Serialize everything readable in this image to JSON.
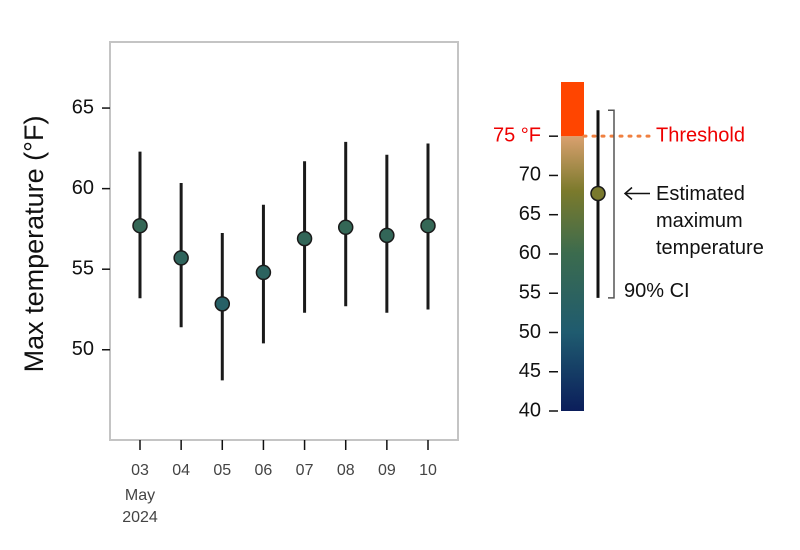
{
  "chart_data": [
    {
      "type": "errorbar",
      "ylabel": "Max temperature (°F)",
      "categories": [
        "03",
        "04",
        "05",
        "06",
        "07",
        "08",
        "09",
        "10"
      ],
      "x_sublabels": [
        "May",
        "2024"
      ],
      "values": [
        57.7,
        55.7,
        52.85,
        54.8,
        56.9,
        57.6,
        57.1,
        57.7
      ],
      "lower": [
        53.2,
        51.4,
        48.1,
        50.4,
        52.3,
        52.7,
        52.3,
        52.5
      ],
      "upper": [
        62.3,
        60.35,
        57.25,
        59.0,
        61.7,
        62.9,
        62.1,
        62.8
      ],
      "ylim": [
        44.4,
        69.1
      ],
      "yticks": [
        50,
        55,
        60,
        65
      ]
    },
    {
      "type": "colorbar",
      "ylim": [
        40,
        81.9
      ],
      "yticks": [
        40,
        45,
        50,
        55,
        60,
        65,
        70,
        {
          "value": 75,
          "label": "75 °F"
        }
      ],
      "colorscale": [
        [
          40,
          "#0b1e5b"
        ],
        [
          50,
          "#1f5b6f"
        ],
        [
          60,
          "#3b6b4e"
        ],
        [
          68,
          "#7b7a2c"
        ],
        [
          75,
          "#d9a06f"
        ]
      ],
      "above_color": "#ff4500",
      "threshold": 75,
      "threshold_label": "Threshold",
      "example_value": 67.7,
      "example_lower": 54.4,
      "example_upper": 78.3,
      "estimate_label": [
        "Estimated",
        "maximum",
        "temperature"
      ],
      "ci_label": "90% CI"
    }
  ]
}
